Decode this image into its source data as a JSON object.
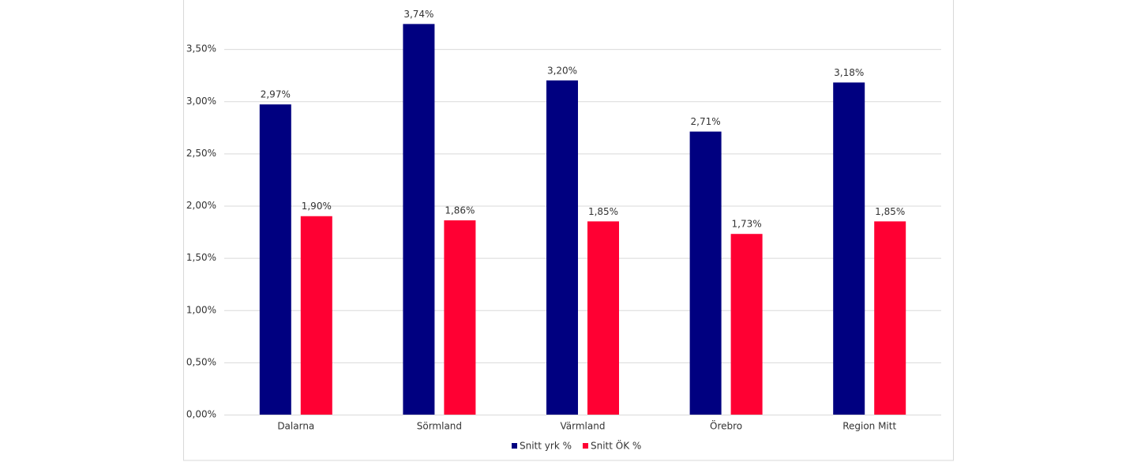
{
  "chart_data": {
    "type": "bar",
    "categories": [
      "Dalarna",
      "Sörmland",
      "Värmland",
      "Örebro",
      "Region Mitt"
    ],
    "series": [
      {
        "name": "Snitt yrk %",
        "color": "#000080",
        "values": [
          2.97,
          3.74,
          3.2,
          2.71,
          3.18
        ],
        "value_labels": [
          "2,97%",
          "3,74%",
          "3,20%",
          "2,71%",
          "3,18%"
        ]
      },
      {
        "name": "Snitt ÖK %",
        "color": "#ff0033",
        "values": [
          1.9,
          1.86,
          1.85,
          1.73,
          1.85
        ],
        "value_labels": [
          "1,90%",
          "1,86%",
          "1,85%",
          "1,73%",
          "1,85%"
        ]
      }
    ],
    "ylim": [
      0,
      4
    ],
    "yticks": [
      {
        "value": 0,
        "label": "0,00%"
      },
      {
        "value": 0.5,
        "label": "0,50%"
      },
      {
        "value": 1,
        "label": "1,00%"
      },
      {
        "value": 1.5,
        "label": "1,50%"
      },
      {
        "value": 2,
        "label": "2,00%"
      },
      {
        "value": 2.5,
        "label": "2,50%"
      },
      {
        "value": 3,
        "label": "3,00%"
      },
      {
        "value": 3.5,
        "label": "3,50%"
      }
    ],
    "grid": true,
    "legend": "bottom"
  }
}
